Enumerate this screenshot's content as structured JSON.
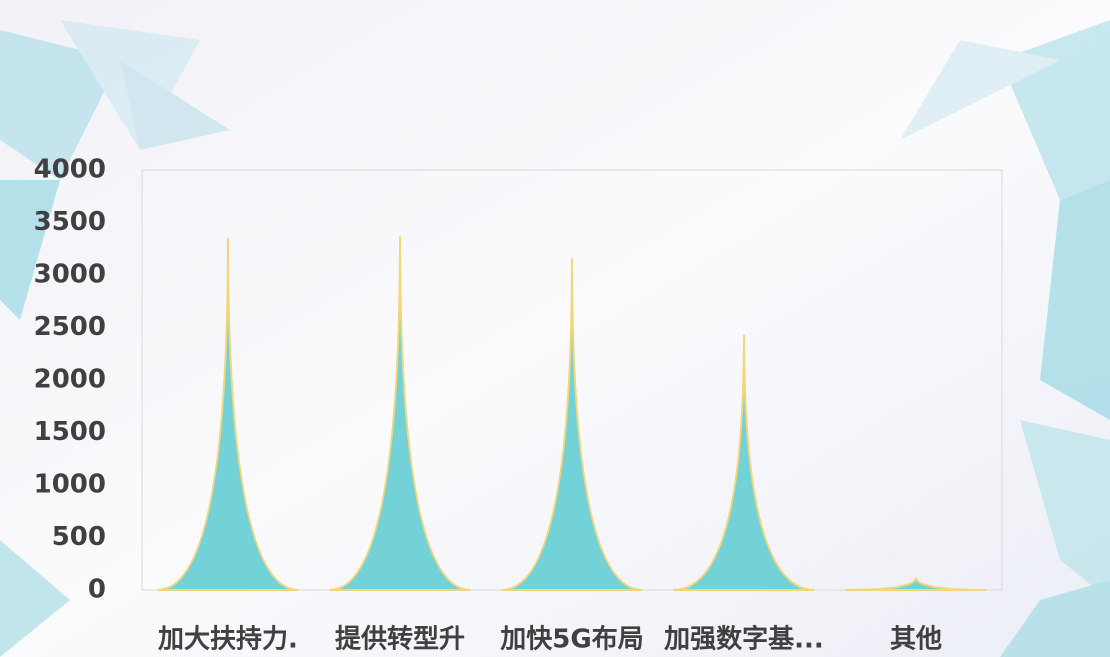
{
  "chart_data": {
    "type": "spike-bar",
    "categories": [
      "加大扶持力.",
      "提供转型升",
      "加快5G布局",
      "加强数字基...",
      "其他"
    ],
    "values": [
      3350,
      3370,
      3160,
      2430,
      120
    ],
    "color": "#72d2d8",
    "edge_color": "#f3d57a",
    "ylim": [
      0,
      4000
    ],
    "yticks": [
      0,
      500,
      1000,
      1500,
      2000,
      2500,
      3000,
      3500,
      4000
    ],
    "grid": false
  }
}
